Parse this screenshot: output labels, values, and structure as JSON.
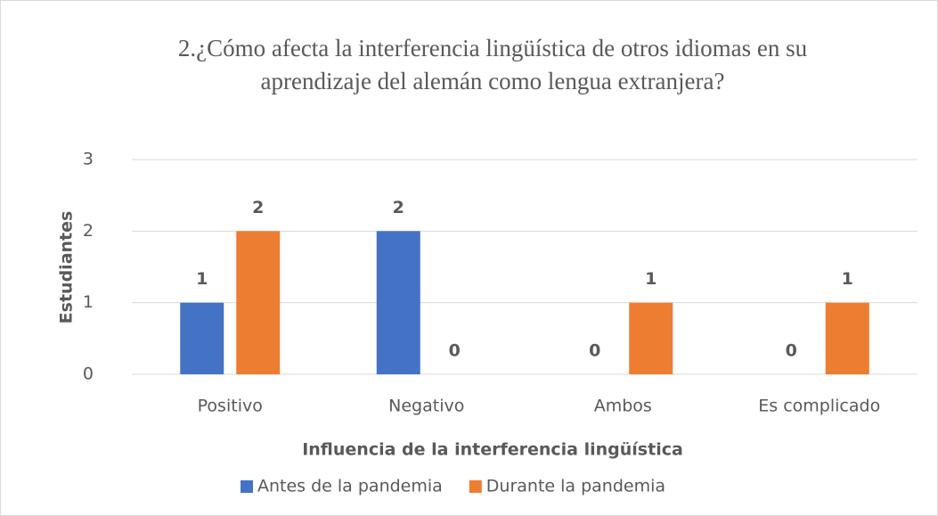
{
  "chart_data": {
    "type": "bar",
    "title": "2.¿Cómo afecta la interferencia lingüística de otros idiomas en su aprendizaje del alemán como lengua extranjera?",
    "x_label": "Influencia de la interferencia lingüística",
    "y_label": "Estudiantes",
    "categories": [
      "Positivo",
      "Negativo",
      "Ambos",
      "Es complicado"
    ],
    "series": [
      {
        "name": "Antes de la pandemia",
        "color": "#4472c4",
        "values": [
          1,
          2,
          0,
          0
        ]
      },
      {
        "name": "Durante la pandemia",
        "color": "#ed7d31",
        "values": [
          2,
          0,
          1,
          1
        ]
      }
    ],
    "ylim": [
      0,
      3
    ],
    "yticks": [
      0,
      1,
      2,
      3
    ],
    "grid": true,
    "legend": "bottom"
  }
}
